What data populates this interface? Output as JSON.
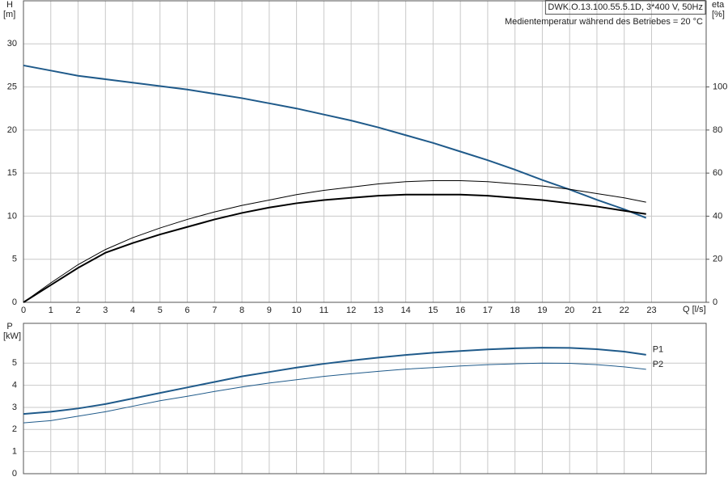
{
  "chart_data": [
    {
      "type": "line",
      "title": "DWK.O.13.100.55.5.1D, 3*400 V, 50Hz",
      "subtitle": "Medientemperatur während des Betriebes = 20 °C",
      "y_label": "H",
      "y_unit": "[m]",
      "y2_label": "eta",
      "y2_unit": "[%]",
      "x_label": "Q [l/s]",
      "x": [
        0,
        1,
        2,
        3,
        4,
        5,
        6,
        7,
        8,
        9,
        10,
        11,
        12,
        13,
        14,
        15,
        16,
        17,
        18,
        19,
        20,
        21,
        22,
        22.8
      ],
      "xlim": [
        0,
        25
      ],
      "xticks": [
        0,
        1,
        2,
        3,
        4,
        5,
        6,
        7,
        8,
        9,
        10,
        11,
        12,
        13,
        14,
        15,
        16,
        17,
        18,
        19,
        20,
        21,
        22,
        23
      ],
      "ylim": [
        0,
        35
      ],
      "yticks": [
        0,
        5,
        10,
        15,
        20,
        25,
        30
      ],
      "y2lim": [
        0,
        140
      ],
      "y2ticks": [
        0,
        20,
        40,
        60,
        80,
        100
      ],
      "grid": true,
      "series": [
        {
          "color": "#1f5a8a",
          "width": 2,
          "values": [
            27.5,
            26.9,
            26.3,
            25.9,
            25.5,
            25.1,
            24.7,
            24.2,
            23.7,
            23.1,
            22.5,
            21.8,
            21.1,
            20.3,
            19.4,
            18.5,
            17.5,
            16.5,
            15.4,
            14.2,
            13.1,
            11.9,
            10.8,
            9.8
          ]
        },
        {
          "color": "#000000",
          "width": 1,
          "axis": "y2",
          "values": [
            0,
            9,
            17.5,
            24.5,
            30,
            34.5,
            38.5,
            42,
            45,
            47.5,
            50,
            52,
            53.5,
            55,
            56,
            56.5,
            56.5,
            56,
            55,
            54,
            52.5,
            50.5,
            48.5,
            46.5
          ]
        },
        {
          "color": "#000000",
          "width": 2,
          "axis": "y2",
          "values": [
            0,
            8,
            16,
            23,
            27.5,
            31.5,
            35,
            38.5,
            41.5,
            44,
            46,
            47.5,
            48.5,
            49.5,
            50,
            50,
            50,
            49.5,
            48.5,
            47.5,
            46,
            44.5,
            42.5,
            41
          ]
        }
      ]
    },
    {
      "type": "line",
      "y_label": "P",
      "y_unit": "[kW]",
      "x": [
        0,
        1,
        2,
        3,
        4,
        5,
        6,
        7,
        8,
        9,
        10,
        11,
        12,
        13,
        14,
        15,
        16,
        17,
        18,
        19,
        20,
        21,
        22,
        22.8
      ],
      "xlim": [
        0,
        25
      ],
      "ylim": [
        0,
        6.8
      ],
      "yticks": [
        0,
        1,
        2,
        3,
        4,
        5
      ],
      "grid": true,
      "series": [
        {
          "name": "P1",
          "color": "#1f5a8a",
          "width": 2,
          "values": [
            2.7,
            2.8,
            2.95,
            3.15,
            3.4,
            3.65,
            3.9,
            4.15,
            4.4,
            4.6,
            4.8,
            4.97,
            5.12,
            5.25,
            5.37,
            5.47,
            5.55,
            5.62,
            5.67,
            5.7,
            5.69,
            5.63,
            5.52,
            5.38
          ]
        },
        {
          "name": "P2",
          "color": "#1f5a8a",
          "width": 1,
          "values": [
            2.3,
            2.4,
            2.6,
            2.8,
            3.05,
            3.3,
            3.5,
            3.72,
            3.92,
            4.1,
            4.25,
            4.4,
            4.52,
            4.63,
            4.73,
            4.8,
            4.87,
            4.93,
            4.97,
            5.0,
            4.99,
            4.93,
            4.83,
            4.72
          ]
        }
      ]
    }
  ]
}
